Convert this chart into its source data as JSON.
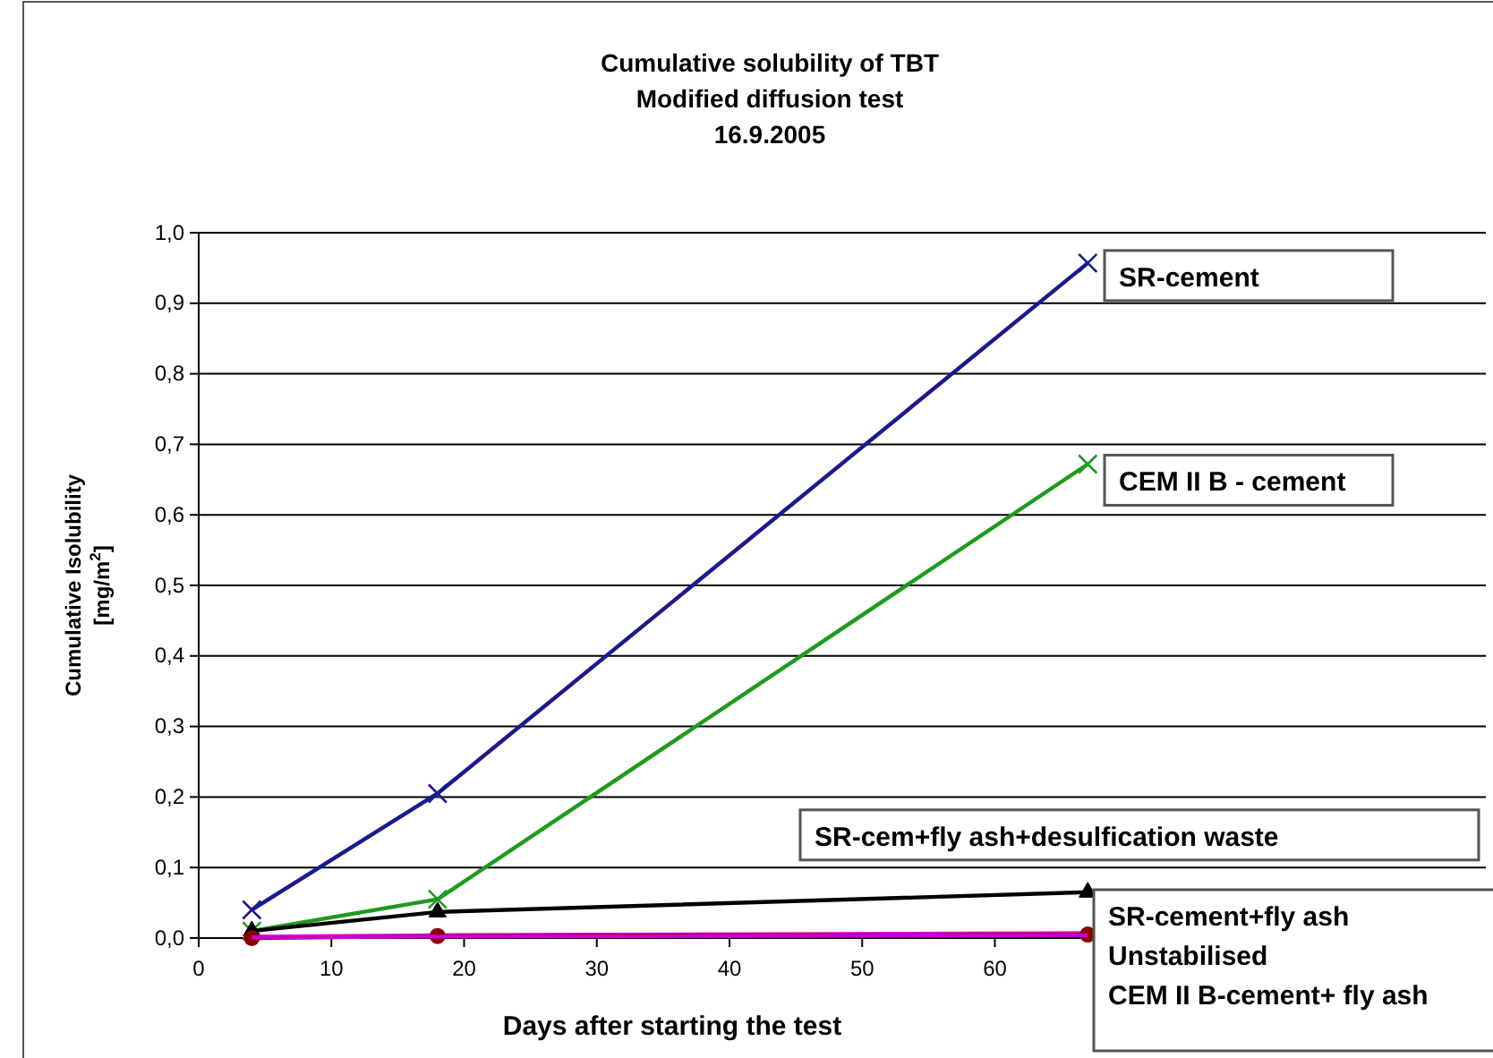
{
  "chart_data": {
    "type": "line",
    "title": "Cumulative solubility of TBT\nModified diffusion test\n16.9.2005",
    "xlabel": "Days after starting the test",
    "ylabel": "Cumulative Isolubility\n[mg/m$^{2}$]",
    "x": [
      4,
      18,
      67
    ],
    "series": [
      {
        "name": "SR-cement",
        "color": "#1a1a8c",
        "marker": "cross",
        "values": [
          0.04,
          0.205,
          0.957
        ]
      },
      {
        "name": "CEM II B - cement",
        "color": "#1f9a1f",
        "marker": "cross",
        "values": [
          0.01,
          0.055,
          0.672
        ]
      },
      {
        "name": "SR-cem+fly ash+desulfication waste",
        "color": "#000000",
        "marker": "triangle",
        "values": [
          0.01,
          0.037,
          0.065
        ]
      },
      {
        "name": "SR-cement+fly ash",
        "color": "#ff00ff",
        "marker": "none",
        "values": [
          0.002,
          0.004,
          0.007
        ]
      },
      {
        "name": "Unstabilised",
        "color": "#8b0000",
        "marker": "circle",
        "values": [
          0.0,
          0.003,
          0.005
        ]
      },
      {
        "name": "CEM II B-cement+ fly ash",
        "color": "#cc00cc",
        "marker": "none",
        "values": [
          0.001,
          0.002,
          0.004
        ]
      }
    ],
    "xlim": [
      0,
      97
    ],
    "xticks": [
      0,
      10,
      20,
      30,
      40,
      50,
      60
    ],
    "ylim": [
      0,
      1.0
    ],
    "yticks": [
      {
        "value": 0,
        "label": "0,0"
      },
      {
        "value": 0.1,
        "label": "0,1"
      },
      {
        "value": 0.2,
        "label": "0,2"
      },
      {
        "value": 0.3,
        "label": "0,3"
      },
      {
        "value": 0.4,
        "label": "0,4"
      },
      {
        "value": 0.5,
        "label": "0,5"
      },
      {
        "value": 0.6,
        "label": "0,6"
      },
      {
        "value": 0.7,
        "label": "0,7"
      },
      {
        "value": 0.8,
        "label": "0,8"
      },
      {
        "value": 0.9,
        "label": "0,9"
      },
      {
        "value": 1.0,
        "label": "1,0"
      }
    ],
    "grid": "y",
    "legend": false
  }
}
